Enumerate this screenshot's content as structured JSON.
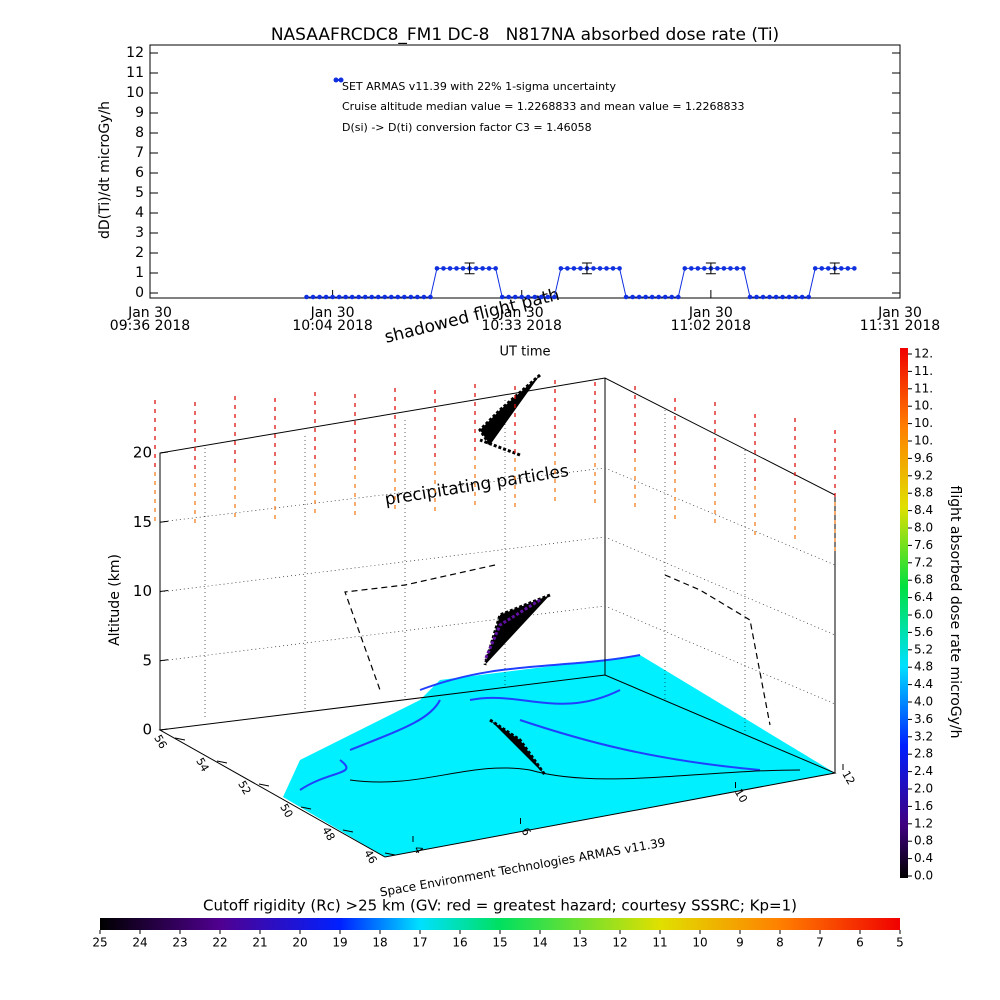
{
  "chart_data": {
    "type": "line",
    "title": "NASAAFRCDC8_FM1 DC-8   N817NA absorbed dose rate (Ti)",
    "ylabel": "dD(Ti)/dt microGy/h",
    "xlabel": "UT time",
    "ylim": [
      -0.25,
      12.4
    ],
    "yticks": [
      0,
      1,
      2,
      3,
      4,
      5,
      6,
      7,
      8,
      9,
      10,
      11,
      12
    ],
    "xlim": [
      "09:36",
      "11:31"
    ],
    "xticks": [
      {
        "value": "09:36",
        "label": "Jan 30\n09:36 2018"
      },
      {
        "value": "10:04",
        "label": "Jan 30\n10:04 2018"
      },
      {
        "value": "10:33",
        "label": "Jan 30\n10:33 2018"
      },
      {
        "value": "11:02",
        "label": "Jan 30\n11:02 2018"
      },
      {
        "value": "11:31",
        "label": "Jan 30\n11:31 2018"
      }
    ],
    "annotations": [
      "Cruise altitude median value = 1.2268833 and mean value = 1.2268833",
      "D(si) -> D(ti) conversion factor C3 = 1.46058"
    ],
    "series": [
      {
        "name": "SET ARMAS v11.39 with 22% 1-sigma uncertainty",
        "color": "#1030e0",
        "x": [
          "10:00",
          "10:01",
          "10:02",
          "10:03",
          "10:04",
          "10:05",
          "10:06",
          "10:07",
          "10:08",
          "10:09",
          "10:10",
          "10:11",
          "10:12",
          "10:13",
          "10:14",
          "10:15",
          "10:16",
          "10:17",
          "10:18",
          "10:19",
          "10:20",
          "10:21",
          "10:22",
          "10:23",
          "10:24",
          "10:25",
          "10:26",
          "10:27",
          "10:28",
          "10:29",
          "10:30",
          "10:31",
          "10:32",
          "10:33",
          "10:34",
          "10:35",
          "10:36",
          "10:37",
          "10:38",
          "10:39",
          "10:40",
          "10:41",
          "10:42",
          "10:43",
          "10:44",
          "10:45",
          "10:46",
          "10:47",
          "10:48",
          "10:49",
          "10:50",
          "10:51",
          "10:52",
          "10:53",
          "10:54",
          "10:55",
          "10:56",
          "10:57",
          "10:58",
          "10:59",
          "11:00",
          "11:01",
          "11:02",
          "11:03",
          "11:04",
          "11:05",
          "11:06",
          "11:07",
          "11:08",
          "11:09",
          "11:10",
          "11:11",
          "11:12",
          "11:13",
          "11:14",
          "11:15",
          "11:16",
          "11:17",
          "11:18",
          "11:19",
          "11:20",
          "11:21",
          "11:22",
          "11:23",
          "11:24"
        ],
        "values": [
          -0.2,
          -0.2,
          -0.2,
          -0.2,
          -0.2,
          -0.2,
          -0.2,
          -0.2,
          -0.2,
          -0.2,
          -0.2,
          -0.2,
          -0.2,
          -0.2,
          -0.2,
          -0.2,
          -0.2,
          -0.2,
          -0.2,
          -0.2,
          1.23,
          1.23,
          1.23,
          1.23,
          1.23,
          1.23,
          1.23,
          1.23,
          1.23,
          1.23,
          -0.2,
          -0.2,
          -0.2,
          -0.2,
          -0.2,
          -0.2,
          -0.2,
          -0.2,
          -0.2,
          1.23,
          1.23,
          1.23,
          1.23,
          1.23,
          1.23,
          1.23,
          1.23,
          1.23,
          1.23,
          -0.2,
          -0.2,
          -0.2,
          -0.2,
          -0.2,
          -0.2,
          -0.2,
          -0.2,
          -0.2,
          1.23,
          1.23,
          1.23,
          1.23,
          1.23,
          1.23,
          1.23,
          1.23,
          1.23,
          1.23,
          -0.2,
          -0.2,
          -0.2,
          -0.2,
          -0.2,
          -0.2,
          -0.2,
          -0.2,
          -0.2,
          -0.2,
          1.23,
          1.23,
          1.23,
          1.23,
          1.23,
          1.23,
          1.23
        ]
      }
    ],
    "error_bars": [
      {
        "x": "10:25",
        "value": 1.23,
        "error": 0.27
      },
      {
        "x": "10:43",
        "value": 1.23,
        "error": 0.27
      },
      {
        "x": "11:02",
        "value": 1.23,
        "error": 0.27
      },
      {
        "x": "11:21",
        "value": 1.23,
        "error": 0.27
      }
    ]
  },
  "plot3d": {
    "zlabel": "Altitude (km)",
    "zlim": [
      0,
      20
    ],
    "zticks": [
      0,
      5,
      10,
      15,
      20
    ],
    "latlim": [
      46,
      56
    ],
    "lat_ticks": [
      46,
      48,
      50,
      52,
      54,
      56
    ],
    "lonlim": [
      4,
      12
    ],
    "lon_ticks": [
      4,
      6,
      10,
      12
    ],
    "annotations": [
      "shadowed flight path",
      "precipitating particles"
    ],
    "credit": "Space Environment Technologies ARMAS v11.39"
  },
  "colorbar": {
    "label": "flight absorbed dose rate microGy/h",
    "lim": [
      0,
      12
    ],
    "ticks": [
      {
        "value": 0,
        "label": "0.0"
      },
      {
        "value": 0.4,
        "label": "0.4"
      },
      {
        "value": 0.8,
        "label": "0.8"
      },
      {
        "value": 1.2,
        "label": "1.2"
      },
      {
        "value": 1.6,
        "label": "1.6"
      },
      {
        "value": 2,
        "label": "2.0"
      },
      {
        "value": 2.4,
        "label": "2.4"
      },
      {
        "value": 2.8,
        "label": "2.8"
      },
      {
        "value": 3.2,
        "label": "3.2"
      },
      {
        "value": 3.6,
        "label": "3.6"
      },
      {
        "value": 4,
        "label": "4.0"
      },
      {
        "value": 4.4,
        "label": "4.4"
      },
      {
        "value": 4.8,
        "label": "4.8"
      },
      {
        "value": 5.2,
        "label": "5.2"
      },
      {
        "value": 5.6,
        "label": "5.6"
      },
      {
        "value": 6,
        "label": "6.0"
      },
      {
        "value": 6.4,
        "label": "6.4"
      },
      {
        "value": 6.8,
        "label": "6.8"
      },
      {
        "value": 7.2,
        "label": "7.2"
      },
      {
        "value": 7.6,
        "label": "7.6"
      },
      {
        "value": 8,
        "label": "8.0"
      },
      {
        "value": 8.4,
        "label": "8.4"
      },
      {
        "value": 8.8,
        "label": "8.8"
      },
      {
        "value": 9.2,
        "label": "9.2"
      },
      {
        "value": 9.6,
        "label": "9.6"
      },
      {
        "value": 10,
        "label": "10."
      },
      {
        "value": 10.4,
        "label": "10."
      },
      {
        "value": 10.8,
        "label": "10."
      },
      {
        "value": 11.2,
        "label": "11."
      },
      {
        "value": 11.6,
        "label": "11."
      },
      {
        "value": 12,
        "label": "12."
      }
    ]
  },
  "rigidity_bar": {
    "title": "Cutoff rigidity (Rc) >25 km (GV: red = greatest hazard; courtesy SSSRC; Kp=1)",
    "lim": [
      25,
      5
    ],
    "ticks": [
      25,
      24,
      23,
      22,
      21,
      20,
      19,
      18,
      17,
      16,
      15,
      14,
      13,
      12,
      11,
      10,
      9,
      8,
      7,
      6,
      5
    ]
  }
}
